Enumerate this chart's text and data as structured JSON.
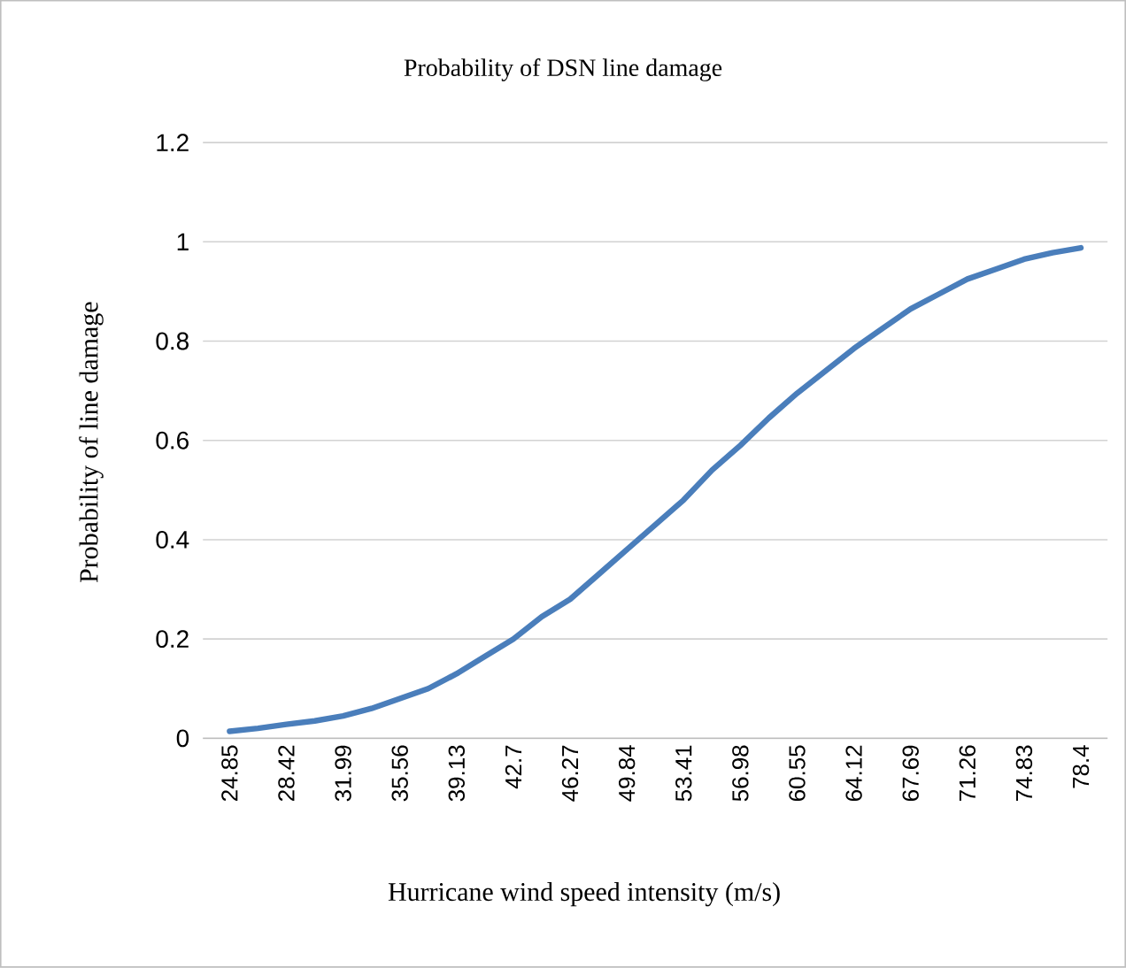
{
  "chart_data": {
    "type": "line",
    "title": "Probability of DSN line damage",
    "xlabel": "Hurricane wind speed intensity (m/s)",
    "ylabel": "Probability of line damage",
    "categories": [
      "24.85",
      null,
      "28.42",
      null,
      "31.99",
      null,
      "35.56",
      null,
      "39.13",
      null,
      "42.7",
      null,
      "46.27",
      null,
      "49.84",
      null,
      "53.41",
      null,
      "56.98",
      null,
      "60.55",
      null,
      "64.12",
      null,
      "67.69",
      null,
      "71.26",
      null,
      "74.83",
      null,
      "78.4"
    ],
    "series": [
      {
        "color": "#4a7ebb",
        "values": [
          0.014,
          0.02,
          0.028,
          0.035,
          0.045,
          0.06,
          0.08,
          0.1,
          0.13,
          0.165,
          0.2,
          0.245,
          0.28,
          0.33,
          0.38,
          0.43,
          0.48,
          0.54,
          0.59,
          0.645,
          0.695,
          0.74,
          0.785,
          0.825,
          0.865,
          0.895,
          0.925,
          0.945,
          0.965,
          0.978,
          0.988
        ]
      }
    ],
    "ylim": [
      0,
      1.2
    ],
    "yticks": [
      0,
      0.2,
      0.4,
      0.6,
      0.8,
      1,
      1.2
    ],
    "grid": "y",
    "marker": "none",
    "line_style": "solid"
  }
}
